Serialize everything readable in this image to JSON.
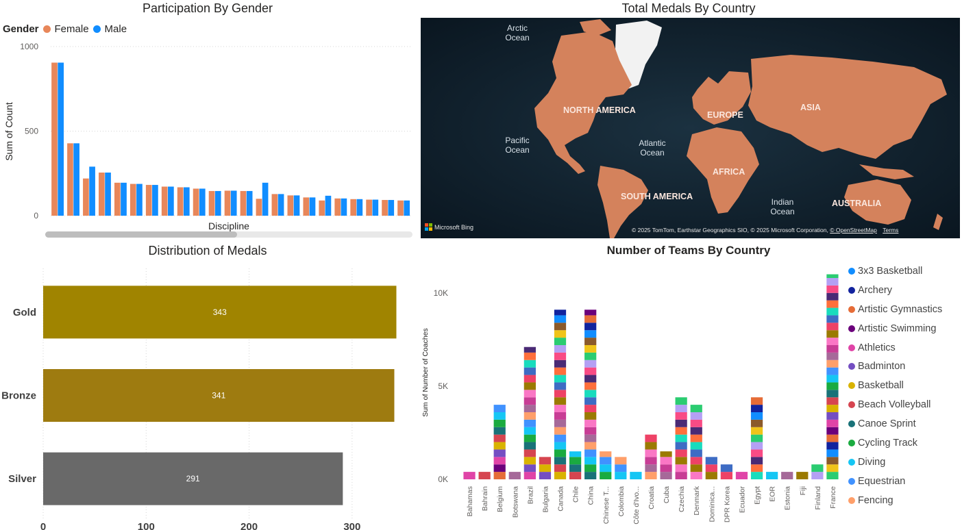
{
  "gender_panel": {
    "title": "Participation By Gender",
    "legend_title": "Gender",
    "legend": [
      {
        "label": "Female",
        "color": "#e8875a"
      },
      {
        "label": "Male",
        "color": "#118dff"
      }
    ]
  },
  "map_panel": {
    "title": "Total Medals By Country",
    "labels": {
      "arctic": "Arctic Ocean",
      "north_america": "NORTH AMERICA",
      "europe": "EUROPE",
      "asia": "ASIA",
      "pacific": "Pacific Ocean",
      "atlantic": "Atlantic Ocean",
      "africa": "AFRICA",
      "south_america": "SOUTH AMERICA",
      "indian": "Indian Ocean",
      "australia": "AUSTRALIA"
    },
    "bing": "Microsoft Bing",
    "attribution": "© 2025 TomTom, Earthstar Geographics SIO, © 2025 Microsoft Corporation,",
    "osm_link": "© OpenStreetMap",
    "terms_link": "Terms",
    "land_color": "#d4825c"
  },
  "medals_panel": {
    "title": "Distribution of Medals"
  },
  "teams_panel": {
    "title": "Number of Teams By Country"
  },
  "chart_data": [
    {
      "type": "bar",
      "title": "Participation By Gender",
      "xlabel": "Discipline",
      "ylabel": "Sum of Count",
      "ylim": [
        0,
        1000
      ],
      "yticks": [
        0,
        500,
        1000
      ],
      "legend_position": "top-left",
      "grid": true,
      "series": [
        {
          "name": "Female",
          "color": "#e8875a",
          "values": [
            905,
            428,
            220,
            255,
            195,
            188,
            182,
            172,
            168,
            160,
            146,
            148,
            146,
            100,
            128,
            120,
            108,
            90,
            102,
            98,
            95,
            93,
            90
          ]
        },
        {
          "name": "Male",
          "color": "#118dff",
          "values": [
            905,
            428,
            290,
            255,
            195,
            188,
            182,
            172,
            168,
            160,
            146,
            148,
            146,
            195,
            128,
            120,
            108,
            118,
            102,
            98,
            95,
            93,
            90
          ]
        }
      ]
    },
    {
      "type": "bar",
      "orientation": "horizontal",
      "title": "Distribution of Medals",
      "categories": [
        "Gold",
        "Bronze",
        "Silver"
      ],
      "values": [
        343,
        341,
        291
      ],
      "colors": [
        "#a08400",
        "#9e7b10",
        "#696969"
      ],
      "xlim": [
        0,
        350
      ],
      "xticks": [
        0,
        100,
        200,
        300
      ],
      "grid": true
    },
    {
      "type": "bar",
      "stacked": true,
      "title": "Number of Teams By Country",
      "ylabel": "Sum of Number of Coaches",
      "ylim": [
        0,
        10800
      ],
      "yticks": [
        {
          "v": 0,
          "label": "0K"
        },
        {
          "v": 5000,
          "label": "5K"
        },
        {
          "v": 10000,
          "label": "10K"
        }
      ],
      "legend_position": "right",
      "categories": [
        "Bahamas",
        "Bahrain",
        "Belgium",
        "Botswana",
        "Brazil",
        "Bulgaria",
        "Canada",
        "Chile",
        "China",
        "Chinese T...",
        "Colombia",
        "Côte d'Ivo...",
        "Croatia",
        "Cuba",
        "Czechia",
        "Denmark",
        "Dominica...",
        "DPR Korea",
        "Ecuador",
        "Egypt",
        "EOR",
        "Estonia",
        "Fiji",
        "Finland",
        "France"
      ],
      "totals": [
        400,
        400,
        4000,
        400,
        7100,
        1200,
        9100,
        1500,
        9100,
        1500,
        1200,
        400,
        2400,
        1500,
        4400,
        4000,
        1200,
        800,
        400,
        4400,
        400,
        400,
        400,
        800,
        11000
      ],
      "legend": [
        {
          "name": "3x3 Basketball",
          "color": "#118dff"
        },
        {
          "name": "Archery",
          "color": "#12239e"
        },
        {
          "name": "Artistic Gymnastics",
          "color": "#e66c37"
        },
        {
          "name": "Artistic Swimming",
          "color": "#6b007b"
        },
        {
          "name": "Athletics",
          "color": "#e044a7"
        },
        {
          "name": "Badminton",
          "color": "#744ec2"
        },
        {
          "name": "Basketball",
          "color": "#d9b300"
        },
        {
          "name": "Beach Volleyball",
          "color": "#d64550"
        },
        {
          "name": "Canoe Sprint",
          "color": "#197278"
        },
        {
          "name": "Cycling Track",
          "color": "#1aab40"
        },
        {
          "name": "Diving",
          "color": "#15c6f4"
        },
        {
          "name": "Equestrian",
          "color": "#4092ff"
        },
        {
          "name": "Fencing",
          "color": "#ff9f6a"
        }
      ],
      "extra_colors": [
        "#a66999",
        "#c83d95",
        "#fa77c5",
        "#9b7a01",
        "#ee4266",
        "#3e6cc4",
        "#19dcbd",
        "#ff6f3c",
        "#4a2a75",
        "#f94b85",
        "#b4a0f4",
        "#2bcc71",
        "#f0c419",
        "#8b5a2b"
      ]
    }
  ]
}
